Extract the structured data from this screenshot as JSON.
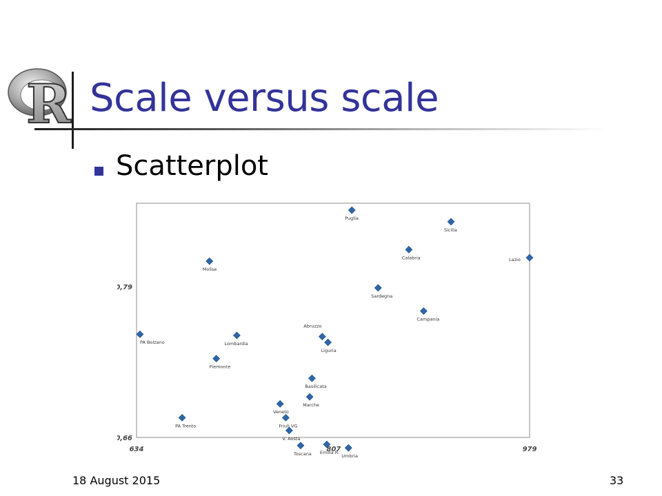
{
  "slide": {
    "title": "Scale versus scale",
    "bullet": "Scatterplot",
    "footer_date": "18 August 2015",
    "page_number": "33",
    "logo_letter": "R"
  },
  "colors": {
    "title": "#333399",
    "bullet": "#333399",
    "marker": "#2e66a8",
    "frame": "#a0a0a0"
  },
  "chart_data": {
    "type": "scatter",
    "xlim": [
      634,
      979
    ],
    "ylim": [
      0.66,
      0.862
    ],
    "x_tick_labels": [
      {
        "value": 634,
        "label": "634"
      },
      {
        "value": 807,
        "label": "807"
      },
      {
        "value": 979,
        "label": "979"
      }
    ],
    "y_tick_labels": [
      {
        "value": 0.79,
        "label": "0,79"
      },
      {
        "value": 0.66,
        "label": "0,66"
      }
    ],
    "grid": false,
    "points": [
      {
        "label": "Puglia",
        "x": 823,
        "y": 0.856
      },
      {
        "label": "Sicilia",
        "x": 910,
        "y": 0.846
      },
      {
        "label": "Calabria",
        "x": 873,
        "y": 0.822
      },
      {
        "label": "Lazio",
        "x": 979,
        "y": 0.815
      },
      {
        "label": "Molise",
        "x": 698,
        "y": 0.812
      },
      {
        "label": "Sardegna",
        "x": 846,
        "y": 0.789
      },
      {
        "label": "Campania",
        "x": 886,
        "y": 0.769
      },
      {
        "label": "PA Bolzano",
        "x": 637,
        "y": 0.749
      },
      {
        "label": "Lombardia",
        "x": 722,
        "y": 0.748
      },
      {
        "label": "Abruzzo",
        "x": 797,
        "y": 0.747
      },
      {
        "label": "Liguria",
        "x": 802,
        "y": 0.742
      },
      {
        "label": "Piemonte",
        "x": 704,
        "y": 0.728
      },
      {
        "label": "Basilicata",
        "x": 788,
        "y": 0.711
      },
      {
        "label": "Marche",
        "x": 786,
        "y": 0.695
      },
      {
        "label": "Veneto",
        "x": 760,
        "y": 0.689
      },
      {
        "label": "Friuli VG",
        "x": 765,
        "y": 0.677
      },
      {
        "label": "PA Trento",
        "x": 674,
        "y": 0.677
      },
      {
        "label": "V. Aosta",
        "x": 768,
        "y": 0.666
      },
      {
        "label": "Emilia R.",
        "x": 801,
        "y": 0.654
      },
      {
        "label": "Toscana",
        "x": 778,
        "y": 0.653
      },
      {
        "label": "Umbria",
        "x": 820,
        "y": 0.651
      }
    ]
  }
}
